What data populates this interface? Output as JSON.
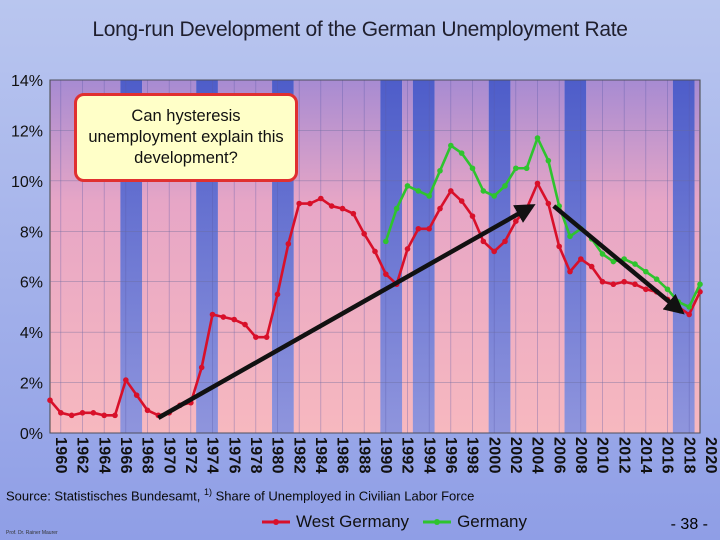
{
  "slide": {
    "title": "Long-run Development of the German Unemployment Rate",
    "source_text": "Source: Statistisches Bundesamt,",
    "footnote_mark": "1)",
    "source_text2": "Share of Unemployed in Civilian Labor Force",
    "author": "Prof. Dr. Rainer Maurer",
    "page_number": "- 38 -"
  },
  "callout": {
    "text": "Can hysteresis unemployment explain this development?"
  },
  "colors": {
    "west": "#d8102a",
    "germany": "#2ec42e",
    "arrow": "#111111",
    "band_pink": "#f3b0b8",
    "band_blue": "#7d86d8"
  },
  "chart_data": {
    "type": "line",
    "x_range": [
      1960,
      2020
    ],
    "ylim": [
      0,
      14
    ],
    "y_ticks": [
      "0%",
      "2%",
      "4%",
      "6%",
      "8%",
      "10%",
      "12%",
      "14%"
    ],
    "x_ticks": [
      "1960",
      "1962",
      "1964",
      "1966",
      "1968",
      "1970",
      "1972",
      "1974",
      "1976",
      "1978",
      "1980",
      "1982",
      "1984",
      "1986",
      "1988",
      "1990",
      "1992",
      "1994",
      "1996",
      "1998",
      "2000",
      "2002",
      "2004",
      "2006",
      "2008",
      "2010",
      "2012",
      "2014",
      "2016",
      "2018",
      "2020"
    ],
    "legend_position": "bottom",
    "series": [
      {
        "name": "West Germany",
        "x": [
          1960,
          1961,
          1962,
          1963,
          1964,
          1965,
          1966,
          1967,
          1968,
          1969,
          1970,
          1971,
          1972,
          1973,
          1974,
          1975,
          1976,
          1977,
          1978,
          1979,
          1980,
          1981,
          1982,
          1983,
          1984,
          1985,
          1986,
          1987,
          1988,
          1989,
          1990,
          1991,
          1992,
          1993,
          1994,
          1995,
          1996,
          1997,
          1998,
          1999,
          2000,
          2001,
          2002,
          2003,
          2004,
          2005,
          2006,
          2007,
          2008,
          2009,
          2010,
          2011,
          2012,
          2013,
          2014,
          2015,
          2016,
          2017,
          2018,
          2019,
          2020
        ],
        "values": [
          1.3,
          0.8,
          0.7,
          0.8,
          0.8,
          0.7,
          0.7,
          2.1,
          1.5,
          0.9,
          0.7,
          0.8,
          1.1,
          1.2,
          2.6,
          4.7,
          4.6,
          4.5,
          4.3,
          3.8,
          3.8,
          5.5,
          7.5,
          9.1,
          9.1,
          9.3,
          9.0,
          8.9,
          8.7,
          7.9,
          7.2,
          6.3,
          5.9,
          7.3,
          8.1,
          8.1,
          8.9,
          9.6,
          9.2,
          8.6,
          7.6,
          7.2,
          7.6,
          8.4,
          8.9,
          9.9,
          9.1,
          7.4,
          6.4,
          6.9,
          6.6,
          6.0,
          5.9,
          6.0,
          5.9,
          5.7,
          5.6,
          5.3,
          5.0,
          4.7,
          5.6
        ]
      },
      {
        "name": "Germany",
        "x": [
          1991,
          1992,
          1993,
          1994,
          1995,
          1996,
          1997,
          1998,
          1999,
          2000,
          2001,
          2002,
          2003,
          2004,
          2005,
          2006,
          2007,
          2008,
          2009,
          2010,
          2011,
          2012,
          2013,
          2014,
          2015,
          2016,
          2017,
          2018,
          2019,
          2020
        ],
        "values": [
          7.6,
          8.9,
          9.8,
          9.6,
          9.4,
          10.4,
          11.4,
          11.1,
          10.5,
          9.6,
          9.4,
          9.8,
          10.5,
          10.5,
          11.7,
          10.8,
          9.0,
          7.8,
          8.1,
          7.7,
          7.1,
          6.8,
          6.9,
          6.7,
          6.4,
          6.1,
          5.7,
          5.2,
          5.0,
          5.9
        ]
      }
    ],
    "annotations": {
      "arrow_up": {
        "from": [
          1970,
          0.6
        ],
        "to": [
          2004.5,
          9.0
        ]
      },
      "arrow_down": {
        "from": [
          2006.5,
          9.0
        ],
        "to": [
          2018.3,
          4.8
        ]
      }
    },
    "band_edges": [
      1966.5,
      1968.5,
      1973.5,
      1975.5,
      1980.5,
      1982.5,
      1990.5,
      1992.5,
      1993.5,
      1995.5,
      2000.5,
      2002.5,
      2007.5,
      2009.5,
      2017.5,
      2019.5
    ]
  }
}
